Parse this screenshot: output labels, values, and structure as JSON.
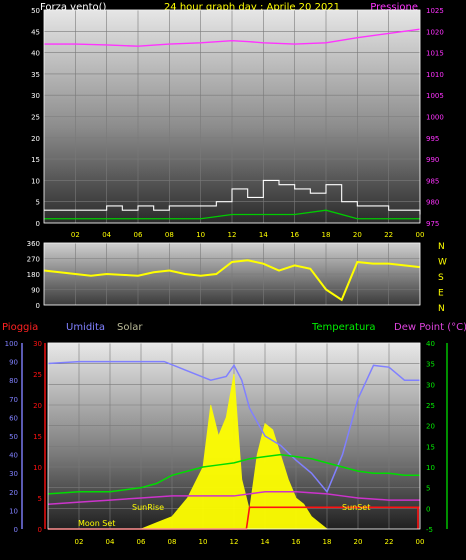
{
  "title": "24 hour graph day : Aprile 20 2021",
  "top_left_label": "Forza vento()",
  "top_right_label": "Pressione",
  "bottom_labels": {
    "pioggia": "Pioggia",
    "umidita": "Umidita",
    "solar": "Solar",
    "temperatura": "Temperatura",
    "dewpoint": "Dew Point (°C)"
  },
  "colors": {
    "title": "#ffff00",
    "pressure": "#ff33ff",
    "wind_gust": "#ffffff",
    "wind_avg": "#00cc00",
    "wind_dir": "#ffff00",
    "humidity": "#8080ff",
    "temperature": "#00dd00",
    "dewpoint": "#cc33cc",
    "rain": "#ff1111",
    "solar": "#ffff00",
    "solar_label": "#bbbb99",
    "axis": "#ffffff"
  },
  "chart_data": [
    {
      "type": "line",
      "name": "wind_and_pressure",
      "x_ticks": [
        "02",
        "04",
        "06",
        "08",
        "10",
        "12",
        "14",
        "16",
        "18",
        "20",
        "22",
        "00"
      ],
      "y_left": {
        "ticks": [
          0,
          5,
          10,
          15,
          20,
          25,
          30,
          35,
          40,
          45,
          50
        ],
        "range": [
          0,
          50
        ]
      },
      "y_right": {
        "ticks": [
          975,
          980,
          985,
          990,
          995,
          1000,
          1005,
          1010,
          1015,
          1020,
          1025
        ],
        "range": [
          975,
          1025
        ]
      },
      "series": [
        {
          "name": "Pressione",
          "axis": "right",
          "x": [
            0,
            2,
            4,
            6,
            8,
            10,
            12,
            13,
            14,
            16,
            18,
            20,
            22,
            24
          ],
          "values": [
            1017,
            1017,
            1016.8,
            1016.5,
            1017,
            1017.3,
            1017.8,
            1017.6,
            1017.3,
            1017,
            1017.3,
            1018.5,
            1019.5,
            1020.5
          ]
        },
        {
          "name": "wind_gust",
          "axis": "left",
          "x": [
            0,
            1,
            2,
            3,
            4,
            5,
            6,
            7,
            8,
            9,
            10,
            11,
            12,
            13,
            14,
            15,
            16,
            17,
            18,
            19,
            20,
            21,
            22,
            23,
            24
          ],
          "values": [
            3,
            3,
            3,
            3,
            4,
            3,
            4,
            3,
            4,
            4,
            4,
            5,
            8,
            6,
            10,
            9,
            8,
            7,
            9,
            5,
            4,
            4,
            3,
            3,
            2
          ]
        },
        {
          "name": "wind_avg",
          "axis": "left",
          "x": [
            0,
            2,
            4,
            6,
            8,
            10,
            12,
            14,
            16,
            18,
            20,
            22,
            24
          ],
          "values": [
            1,
            1,
            1,
            1,
            1,
            1,
            2,
            2,
            2,
            3,
            1,
            1,
            1
          ]
        }
      ]
    },
    {
      "type": "line",
      "name": "wind_direction",
      "x_ticks": [
        "02",
        "04",
        "06",
        "08",
        "10",
        "12",
        "14",
        "16",
        "18",
        "20",
        "22",
        "00"
      ],
      "y_left": {
        "ticks": [
          0,
          90,
          180,
          270,
          360
        ],
        "range": [
          0,
          360
        ]
      },
      "y_right_labels": [
        "N",
        "W",
        "S",
        "E",
        "N"
      ],
      "series": [
        {
          "name": "direction",
          "x": [
            0,
            1,
            2,
            3,
            4,
            5,
            6,
            7,
            8,
            9,
            10,
            11,
            12,
            13,
            14,
            15,
            16,
            17,
            18,
            19,
            20,
            21,
            22,
            23,
            24
          ],
          "values": [
            200,
            190,
            180,
            170,
            180,
            175,
            170,
            190,
            200,
            180,
            170,
            180,
            250,
            260,
            240,
            200,
            230,
            210,
            90,
            30,
            250,
            240,
            240,
            230,
            220
          ]
        }
      ]
    },
    {
      "type": "line",
      "name": "rain_humidity_solar_temperature",
      "x_ticks": [
        "02",
        "04",
        "06",
        "08",
        "10",
        "12",
        "14",
        "16",
        "18",
        "20",
        "22",
        "00"
      ],
      "y_pioggia": {
        "ticks": [
          0,
          5,
          10,
          15,
          20,
          25,
          30
        ],
        "range": [
          0,
          30
        ]
      },
      "y_umidita": {
        "ticks": [
          0,
          10,
          20,
          30,
          40,
          50,
          60,
          70,
          80,
          90,
          100
        ],
        "range": [
          0,
          100
        ]
      },
      "y_temp": {
        "ticks": [
          -5,
          0,
          5,
          10,
          15,
          20,
          25,
          30,
          35,
          40
        ],
        "range": [
          -5,
          40
        ]
      },
      "annotations": [
        "Moon Set",
        "SunRise",
        "SunSet"
      ],
      "series": [
        {
          "name": "Umidita",
          "axis": "umidita",
          "x": [
            0,
            2,
            4,
            6,
            7.5,
            9,
            10.5,
            11.5,
            12,
            12.5,
            13,
            14,
            15,
            16,
            17,
            18,
            19,
            20,
            21,
            22,
            23,
            24
          ],
          "values": [
            89,
            90,
            90,
            90,
            90,
            85,
            80,
            82,
            88,
            80,
            65,
            50,
            45,
            37,
            30,
            20,
            40,
            70,
            88,
            87,
            80,
            80
          ]
        },
        {
          "name": "Temperatura",
          "axis": "temp",
          "x": [
            0,
            2,
            4,
            6,
            7,
            8,
            9,
            10,
            11,
            12,
            13,
            14,
            15,
            16,
            17,
            18,
            19,
            20,
            21,
            22,
            23,
            24
          ],
          "values": [
            3.5,
            4,
            4,
            5,
            6,
            8,
            9,
            10,
            10.5,
            11,
            12,
            12.5,
            13,
            12.5,
            12,
            11,
            10,
            9,
            8.5,
            8.5,
            8,
            8
          ]
        },
        {
          "name": "Dew Point",
          "axis": "temp",
          "x": [
            0,
            2,
            4,
            6,
            8,
            10,
            12,
            13,
            14,
            16,
            18,
            19,
            20,
            22,
            24
          ],
          "values": [
            1,
            1.5,
            2,
            2.5,
            3,
            3,
            3,
            3.5,
            4,
            4,
            3.5,
            3,
            2.5,
            2,
            2
          ]
        },
        {
          "name": "Pioggia",
          "axis": "pioggia",
          "x": [
            0,
            12.8,
            13,
            24
          ],
          "values": [
            0,
            0,
            3.5,
            3.5
          ]
        },
        {
          "name": "Solar",
          "axis": "pioggia",
          "x": [
            6,
            7,
            8,
            9,
            10,
            10.5,
            11,
            11.5,
            12,
            12.5,
            13,
            13.5,
            14,
            14.5,
            15,
            15.5,
            16,
            16.5,
            17,
            17.5,
            18
          ],
          "values": [
            0,
            1,
            2,
            5,
            10,
            20,
            15,
            18,
            25,
            8,
            3,
            12,
            17,
            16,
            12,
            8,
            5,
            4,
            2,
            1,
            0
          ]
        }
      ]
    }
  ]
}
